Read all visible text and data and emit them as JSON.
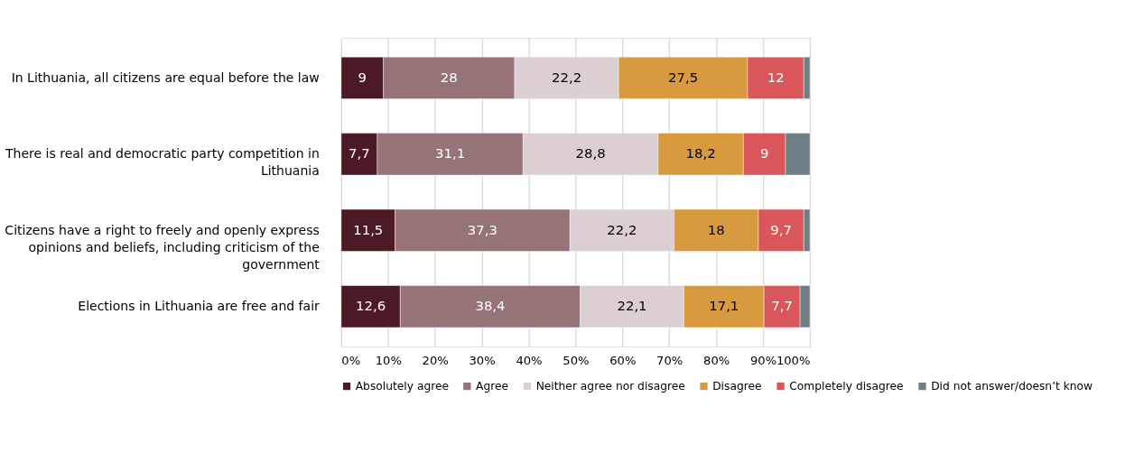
{
  "chart_data": {
    "type": "bar",
    "orientation": "horizontal",
    "stacked": true,
    "grid": "x",
    "legend": "bottom",
    "categories": [
      "In Lithuania, all citizens are equal before the law",
      "There is real and democratic party competition in Lithuania",
      "Citizens have a right to freely and openly express opinions and beliefs, including criticism of the government",
      "Elections in Lithuania are free and fair"
    ],
    "xlim": [
      0,
      100
    ],
    "xticks": [
      {
        "value": 0,
        "label": "0%"
      },
      {
        "value": 10,
        "label": "10%"
      },
      {
        "value": 20,
        "label": "20%"
      },
      {
        "value": 30,
        "label": "30%"
      },
      {
        "value": 40,
        "label": "40%"
      },
      {
        "value": 50,
        "label": "50%"
      },
      {
        "value": 60,
        "label": "60%"
      },
      {
        "value": 70,
        "label": "70%"
      },
      {
        "value": 80,
        "label": "80%"
      },
      {
        "value": 90,
        "label": "90%"
      },
      {
        "value": 100,
        "label": "100%"
      }
    ],
    "series": [
      {
        "name": "Absolutely agree",
        "color": "#4b1a24",
        "values": [
          9,
          7.7,
          11.5,
          12.6
        ],
        "value_labels": [
          "9",
          "7,7",
          "11,5",
          "12,6"
        ]
      },
      {
        "name": "Agree",
        "color": "#957377",
        "values": [
          28,
          31.1,
          37.3,
          38.4
        ],
        "value_labels": [
          "28",
          "31,1",
          "37,3",
          "38,4"
        ]
      },
      {
        "name": "Neither agree nor disagree",
        "color": "#dccfd1",
        "values": [
          22.2,
          28.8,
          22.2,
          22.1
        ],
        "value_labels": [
          "22,2",
          "28,8",
          "22,2",
          "22,1"
        ]
      },
      {
        "name": "Disagree",
        "color": "#d89a3e",
        "values": [
          27.5,
          18.2,
          18,
          17.1
        ],
        "value_labels": [
          "27,5",
          "18,2",
          "18",
          "17,1"
        ]
      },
      {
        "name": "Completely disagree",
        "color": "#d9575a",
        "values": [
          12,
          9,
          9.7,
          7.7
        ],
        "value_labels": [
          "12",
          "9",
          "9,7",
          "7,7"
        ]
      },
      {
        "name": "Did not answer/doesn’t know",
        "color": "#6e7e84",
        "values": [
          1.3,
          5.2,
          1.3,
          2.1
        ],
        "value_labels": [
          null,
          null,
          null,
          null
        ]
      }
    ]
  }
}
